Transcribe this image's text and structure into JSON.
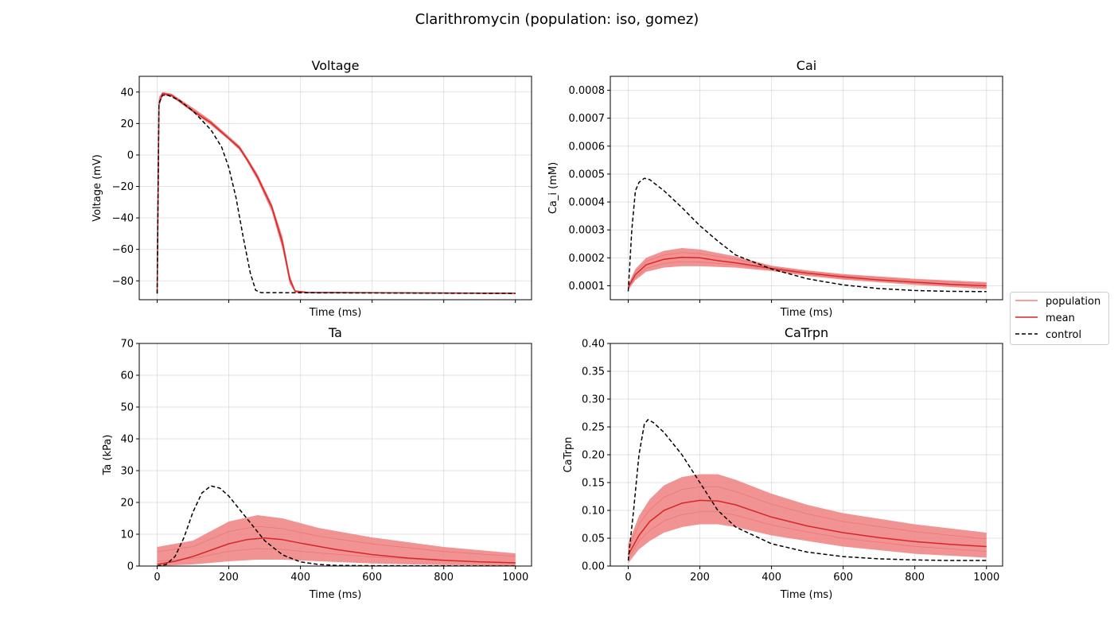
{
  "figure": {
    "title": "Clarithromycin (population: iso, gomez)"
  },
  "legend": {
    "placement": "right",
    "items": [
      {
        "key": "population",
        "label": "population",
        "color": "#f08080",
        "style": "solid"
      },
      {
        "key": "mean",
        "label": "mean",
        "color": "#d62728",
        "style": "solid"
      },
      {
        "key": "control",
        "label": "control",
        "color": "#000000",
        "style": "dashed"
      }
    ]
  },
  "chart_data": [
    {
      "id": "voltage",
      "type": "line",
      "title": "Voltage",
      "xlabel": "Time (ms)",
      "ylabel": "Voltage (mV)",
      "xlim": [
        -50,
        1045
      ],
      "ylim": [
        -92,
        50
      ],
      "xticks": [
        0,
        200,
        400,
        600,
        800,
        1000
      ],
      "show_xticklabels": false,
      "yticks": [
        -80,
        -60,
        -40,
        -20,
        0,
        20,
        40
      ],
      "yticklabels": [
        "−80",
        "−60",
        "−40",
        "−20",
        "0",
        "20",
        "40"
      ],
      "grid": true,
      "band": [
        {
          "x": 0,
          "lo": -89,
          "hi": -87
        },
        {
          "x": 5,
          "lo": 30,
          "hi": 37
        },
        {
          "x": 15,
          "lo": 38,
          "hi": 40
        },
        {
          "x": 40,
          "lo": 37,
          "hi": 39
        },
        {
          "x": 100,
          "lo": 27,
          "hi": 30
        },
        {
          "x": 150,
          "lo": 19,
          "hi": 22
        },
        {
          "x": 200,
          "lo": 9.5,
          "hi": 12
        },
        {
          "x": 230,
          "lo": 3,
          "hi": 6
        },
        {
          "x": 250,
          "lo": -4,
          "hi": -1
        },
        {
          "x": 280,
          "lo": -16,
          "hi": -12
        },
        {
          "x": 320,
          "lo": -36,
          "hi": -31
        },
        {
          "x": 350,
          "lo": -60,
          "hi": -52
        },
        {
          "x": 370,
          "lo": -82,
          "hi": -76
        },
        {
          "x": 385,
          "lo": -87.5,
          "hi": -86
        },
        {
          "x": 420,
          "lo": -87.8,
          "hi": -87
        },
        {
          "x": 1000,
          "lo": -88.2,
          "hi": -87.6
        }
      ],
      "series": [
        {
          "name": "mean",
          "points": [
            [
              0,
              -88
            ],
            [
              5,
              32
            ],
            [
              15,
              39
            ],
            [
              40,
              38
            ],
            [
              100,
              28
            ],
            [
              150,
              20.5
            ],
            [
              200,
              10.5
            ],
            [
              230,
              4.5
            ],
            [
              250,
              -2.5
            ],
            [
              280,
              -14
            ],
            [
              320,
              -33
            ],
            [
              350,
              -56
            ],
            [
              370,
              -79
            ],
            [
              385,
              -86.5
            ],
            [
              420,
              -87.4
            ],
            [
              1000,
              -87.9
            ]
          ]
        },
        {
          "name": "control",
          "points": [
            [
              0,
              -88
            ],
            [
              5,
              33
            ],
            [
              15,
              38
            ],
            [
              30,
              38
            ],
            [
              60,
              35
            ],
            [
              100,
              28
            ],
            [
              150,
              16
            ],
            [
              180,
              5
            ],
            [
              200,
              -8
            ],
            [
              220,
              -27
            ],
            [
              240,
              -52
            ],
            [
              260,
              -75
            ],
            [
              275,
              -86
            ],
            [
              290,
              -87.5
            ],
            [
              1000,
              -88
            ]
          ]
        }
      ]
    },
    {
      "id": "cai",
      "type": "line",
      "title": "Cai",
      "xlabel": "Time (ms)",
      "ylabel": "Ca_i (mM)",
      "xlim": [
        -50,
        1045
      ],
      "ylim": [
        5e-05,
        0.00085
      ],
      "xticks": [
        0,
        200,
        400,
        600,
        800,
        1000
      ],
      "show_xticklabels": false,
      "yticks": [
        0.0001,
        0.0002,
        0.0003,
        0.0004,
        0.0005,
        0.0006,
        0.0007,
        0.0008
      ],
      "yticklabels": [
        "0.0001",
        "0.0002",
        "0.0003",
        "0.0004",
        "0.0005",
        "0.0006",
        "0.0007",
        "0.0008"
      ],
      "grid": true,
      "band": [
        {
          "x": 0,
          "lo": 8.5e-05,
          "hi": 0.000105
        },
        {
          "x": 20,
          "lo": 0.00012,
          "hi": 0.00016
        },
        {
          "x": 50,
          "lo": 0.00015,
          "hi": 0.0002
        },
        {
          "x": 100,
          "lo": 0.000165,
          "hi": 0.000225
        },
        {
          "x": 150,
          "lo": 0.00017,
          "hi": 0.000235
        },
        {
          "x": 200,
          "lo": 0.00017,
          "hi": 0.00023
        },
        {
          "x": 300,
          "lo": 0.000165,
          "hi": 0.000205
        },
        {
          "x": 400,
          "lo": 0.000153,
          "hi": 0.000172
        },
        {
          "x": 500,
          "lo": 0.000135,
          "hi": 0.000155
        },
        {
          "x": 600,
          "lo": 0.000122,
          "hi": 0.000142
        },
        {
          "x": 800,
          "lo": 0.000103,
          "hi": 0.000125
        },
        {
          "x": 1000,
          "lo": 8.8e-05,
          "hi": 0.000113
        }
      ],
      "series": [
        {
          "name": "mean",
          "points": [
            [
              0,
              9.5e-05
            ],
            [
              20,
              0.00014
            ],
            [
              50,
              0.000175
            ],
            [
              100,
              0.000195
            ],
            [
              150,
              0.000202
            ],
            [
              200,
              0.0002
            ],
            [
              250,
              0.00019
            ],
            [
              300,
              0.000182
            ],
            [
              400,
              0.000162
            ],
            [
              500,
              0.000145
            ],
            [
              600,
              0.000132
            ],
            [
              700,
              0.000121
            ],
            [
              800,
              0.000113
            ],
            [
              900,
              0.000105
            ],
            [
              1000,
              0.0001
            ]
          ]
        },
        {
          "name": "control",
          "points": [
            [
              0,
              8e-05
            ],
            [
              10,
              0.0003
            ],
            [
              20,
              0.00044
            ],
            [
              30,
              0.00047
            ],
            [
              45,
              0.000485
            ],
            [
              60,
              0.00048
            ],
            [
              100,
              0.00044
            ],
            [
              150,
              0.00038
            ],
            [
              200,
              0.000315
            ],
            [
              250,
              0.00026
            ],
            [
              300,
              0.00021
            ],
            [
              400,
              0.00016
            ],
            [
              500,
              0.000125
            ],
            [
              600,
              0.000103
            ],
            [
              700,
              9e-05
            ],
            [
              800,
              8.3e-05
            ],
            [
              900,
              8e-05
            ],
            [
              1000,
              7.9e-05
            ]
          ]
        }
      ]
    },
    {
      "id": "ta",
      "type": "line",
      "title": "Ta",
      "xlabel": "Time (ms)",
      "ylabel": "Ta (kPa)",
      "xlim": [
        -50,
        1045
      ],
      "ylim": [
        0,
        70
      ],
      "xticks": [
        0,
        200,
        400,
        600,
        800,
        1000
      ],
      "show_xticklabels": true,
      "yticks": [
        0,
        10,
        20,
        30,
        40,
        50,
        60,
        70
      ],
      "yticklabels": [
        "0",
        "10",
        "20",
        "30",
        "40",
        "50",
        "60",
        "70"
      ],
      "grid": true,
      "band": [
        {
          "x": 0,
          "lo": 0,
          "hi": 6
        },
        {
          "x": 100,
          "lo": 0.5,
          "hi": 8
        },
        {
          "x": 200,
          "lo": 1.5,
          "hi": 14
        },
        {
          "x": 280,
          "lo": 2,
          "hi": 16
        },
        {
          "x": 350,
          "lo": 2,
          "hi": 15
        },
        {
          "x": 450,
          "lo": 1.5,
          "hi": 12
        },
        {
          "x": 600,
          "lo": 0.8,
          "hi": 9
        },
        {
          "x": 800,
          "lo": 0.3,
          "hi": 6
        },
        {
          "x": 1000,
          "lo": 0.1,
          "hi": 4
        }
      ],
      "series": [
        {
          "name": "mean",
          "points": [
            [
              0,
              0.5
            ],
            [
              50,
              1.5
            ],
            [
              100,
              3
            ],
            [
              150,
              5
            ],
            [
              200,
              7
            ],
            [
              250,
              8.3
            ],
            [
              300,
              8.8
            ],
            [
              350,
              8.3
            ],
            [
              400,
              7.2
            ],
            [
              500,
              5.2
            ],
            [
              600,
              3.6
            ],
            [
              700,
              2.5
            ],
            [
              800,
              1.8
            ],
            [
              900,
              1.3
            ],
            [
              1000,
              1
            ]
          ]
        },
        {
          "name": "control",
          "points": [
            [
              0,
              0
            ],
            [
              25,
              0.5
            ],
            [
              50,
              3
            ],
            [
              75,
              9
            ],
            [
              100,
              17
            ],
            [
              125,
              23
            ],
            [
              150,
              25.2
            ],
            [
              175,
              24.5
            ],
            [
              200,
              22
            ],
            [
              250,
              15
            ],
            [
              300,
              8
            ],
            [
              350,
              3.5
            ],
            [
              400,
              1.3
            ],
            [
              450,
              0.5
            ],
            [
              500,
              0.2
            ],
            [
              600,
              0.1
            ],
            [
              1000,
              0
            ]
          ]
        }
      ]
    },
    {
      "id": "catrpn",
      "type": "line",
      "title": "CaTrpn",
      "xlabel": "Time (ms)",
      "ylabel": "CaTrpn",
      "xlim": [
        -50,
        1045
      ],
      "ylim": [
        0,
        0.4
      ],
      "xticks": [
        0,
        200,
        400,
        600,
        800,
        1000
      ],
      "show_xticklabels": true,
      "yticks": [
        0,
        0.05,
        0.1,
        0.15,
        0.2,
        0.25,
        0.3,
        0.35,
        0.4
      ],
      "yticklabels": [
        "0.00",
        "0.05",
        "0.10",
        "0.15",
        "0.20",
        "0.25",
        "0.30",
        "0.35",
        "0.40"
      ],
      "grid": true,
      "band": [
        {
          "x": 0,
          "lo": 0.005,
          "hi": 0.04
        },
        {
          "x": 30,
          "lo": 0.03,
          "hi": 0.09
        },
        {
          "x": 60,
          "lo": 0.045,
          "hi": 0.12
        },
        {
          "x": 100,
          "lo": 0.06,
          "hi": 0.145
        },
        {
          "x": 150,
          "lo": 0.07,
          "hi": 0.16
        },
        {
          "x": 200,
          "lo": 0.075,
          "hi": 0.165
        },
        {
          "x": 250,
          "lo": 0.075,
          "hi": 0.165
        },
        {
          "x": 300,
          "lo": 0.07,
          "hi": 0.155
        },
        {
          "x": 400,
          "lo": 0.055,
          "hi": 0.13
        },
        {
          "x": 500,
          "lo": 0.045,
          "hi": 0.11
        },
        {
          "x": 600,
          "lo": 0.035,
          "hi": 0.095
        },
        {
          "x": 800,
          "lo": 0.022,
          "hi": 0.075
        },
        {
          "x": 1000,
          "lo": 0.015,
          "hi": 0.06
        }
      ],
      "series": [
        {
          "name": "mean",
          "points": [
            [
              0,
              0.02
            ],
            [
              30,
              0.055
            ],
            [
              60,
              0.08
            ],
            [
              100,
              0.1
            ],
            [
              150,
              0.113
            ],
            [
              200,
              0.118
            ],
            [
              250,
              0.117
            ],
            [
              300,
              0.11
            ],
            [
              400,
              0.088
            ],
            [
              500,
              0.072
            ],
            [
              600,
              0.06
            ],
            [
              700,
              0.051
            ],
            [
              800,
              0.044
            ],
            [
              900,
              0.039
            ],
            [
              1000,
              0.035
            ]
          ]
        },
        {
          "name": "control",
          "points": [
            [
              0,
              0.01
            ],
            [
              15,
              0.1
            ],
            [
              30,
              0.2
            ],
            [
              45,
              0.255
            ],
            [
              55,
              0.263
            ],
            [
              70,
              0.258
            ],
            [
              100,
              0.24
            ],
            [
              150,
              0.2
            ],
            [
              200,
              0.15
            ],
            [
              250,
              0.1
            ],
            [
              300,
              0.07
            ],
            [
              400,
              0.04
            ],
            [
              500,
              0.025
            ],
            [
              600,
              0.017
            ],
            [
              700,
              0.013
            ],
            [
              800,
              0.011
            ],
            [
              900,
              0.01
            ],
            [
              1000,
              0.01
            ]
          ]
        }
      ]
    }
  ]
}
